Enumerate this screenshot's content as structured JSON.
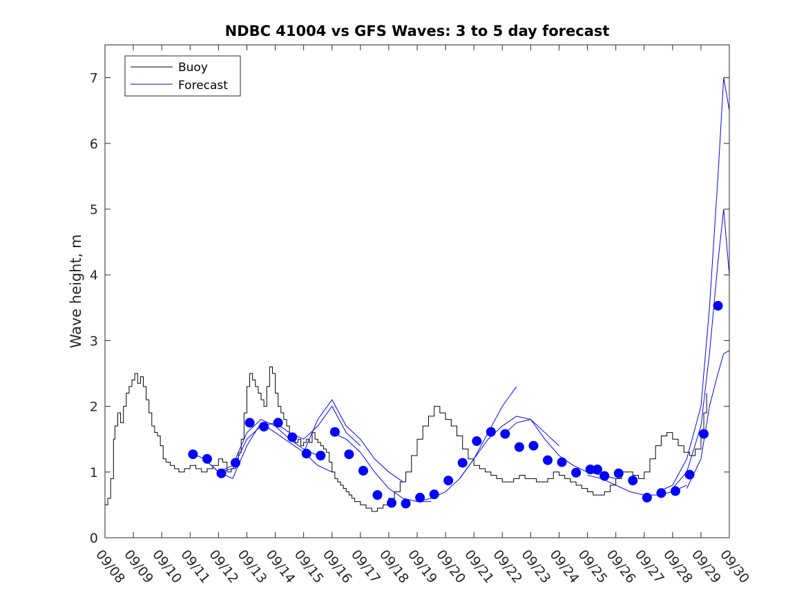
{
  "chart_data": {
    "type": "line",
    "title": "NDBC 41004 vs GFS Waves: 3 to 5 day forecast",
    "xlabel": "",
    "ylabel": "Wave height, m",
    "xlim": [
      0,
      22
    ],
    "ylim": [
      0,
      7.5
    ],
    "yticks": [
      0,
      1,
      2,
      3,
      4,
      5,
      6,
      7
    ],
    "xtick_labels": [
      "09/08",
      "09/09",
      "09/10",
      "09/11",
      "09/12",
      "09/13",
      "09/14",
      "09/15",
      "09/16",
      "09/17",
      "09/18",
      "09/19",
      "09/20",
      "09/21",
      "09/22",
      "09/23",
      "09/24",
      "09/25",
      "09/26",
      "09/27",
      "09/28",
      "09/29",
      "09/30"
    ],
    "legend": {
      "location": "top-left",
      "entries": [
        "Buoy",
        "Forecast"
      ]
    },
    "colors": {
      "buoy": "#000000",
      "forecast": "#0000ff",
      "marker": "#0000ff"
    },
    "series": [
      {
        "name": "Buoy",
        "x": [
          0.0,
          0.1,
          0.2,
          0.3,
          0.35,
          0.45,
          0.55,
          0.65,
          0.75,
          0.85,
          0.95,
          1.05,
          1.15,
          1.25,
          1.35,
          1.45,
          1.55,
          1.65,
          1.75,
          1.85,
          1.95,
          2.05,
          2.15,
          2.3,
          2.45,
          2.6,
          2.8,
          3.0,
          3.2,
          3.4,
          3.6,
          3.8,
          4.0,
          4.15,
          4.3,
          4.45,
          4.6,
          4.7,
          4.8,
          4.9,
          5.0,
          5.1,
          5.2,
          5.3,
          5.4,
          5.5,
          5.6,
          5.7,
          5.8,
          5.9,
          6.0,
          6.1,
          6.2,
          6.3,
          6.4,
          6.5,
          6.6,
          6.7,
          6.8,
          6.9,
          7.0,
          7.1,
          7.2,
          7.3,
          7.4,
          7.5,
          7.6,
          7.7,
          7.8,
          7.9,
          8.0,
          8.1,
          8.2,
          8.3,
          8.4,
          8.5,
          8.6,
          8.7,
          8.8,
          8.9,
          9.0,
          9.2,
          9.4,
          9.6,
          9.8,
          10.0,
          10.2,
          10.4,
          10.6,
          10.8,
          11.0,
          11.2,
          11.4,
          11.6,
          11.8,
          12.0,
          12.2,
          12.4,
          12.6,
          12.8,
          13.0,
          13.2,
          13.4,
          13.6,
          13.8,
          14.0,
          14.2,
          14.4,
          14.6,
          14.8,
          15.0,
          15.2,
          15.4,
          15.6,
          15.8,
          16.0,
          16.2,
          16.4,
          16.6,
          16.8,
          17.0,
          17.2,
          17.4,
          17.6,
          17.8,
          18.0,
          18.2,
          18.4,
          18.6,
          18.8,
          19.0,
          19.2,
          19.4,
          19.6,
          19.8,
          20.0,
          20.2,
          20.4,
          20.6,
          20.8,
          21.0,
          21.1,
          21.2
        ],
        "values": [
          0.5,
          0.6,
          0.9,
          1.5,
          1.7,
          1.9,
          1.75,
          2.0,
          2.2,
          2.3,
          2.4,
          2.5,
          2.35,
          2.45,
          2.3,
          2.1,
          1.9,
          1.7,
          1.6,
          1.55,
          1.4,
          1.2,
          1.15,
          1.1,
          1.05,
          1.0,
          1.05,
          1.1,
          1.05,
          1.0,
          1.05,
          1.1,
          1.2,
          1.15,
          1.0,
          1.05,
          1.2,
          1.3,
          1.5,
          1.9,
          2.3,
          2.5,
          2.4,
          2.3,
          2.2,
          2.1,
          2.0,
          2.3,
          2.6,
          2.5,
          2.2,
          2.0,
          1.9,
          1.8,
          1.7,
          1.55,
          1.5,
          1.45,
          1.5,
          1.4,
          1.45,
          1.5,
          1.45,
          1.6,
          1.5,
          1.45,
          1.4,
          1.35,
          1.3,
          1.15,
          1.0,
          0.9,
          0.85,
          0.8,
          0.75,
          0.7,
          0.65,
          0.6,
          0.55,
          0.55,
          0.5,
          0.45,
          0.4,
          0.45,
          0.5,
          0.6,
          0.7,
          0.85,
          1.0,
          1.25,
          1.5,
          1.7,
          1.85,
          2.0,
          1.9,
          1.8,
          1.7,
          1.55,
          1.35,
          1.2,
          1.1,
          1.05,
          1.0,
          0.95,
          0.9,
          0.85,
          0.85,
          0.9,
          0.95,
          0.9,
          0.9,
          0.85,
          0.85,
          0.9,
          1.0,
          0.95,
          0.9,
          0.85,
          0.8,
          0.75,
          0.7,
          0.65,
          0.65,
          0.7,
          0.8,
          0.9,
          1.0,
          1.0,
          0.95,
          0.9,
          1.0,
          1.2,
          1.4,
          1.55,
          1.6,
          1.5,
          1.4,
          1.3,
          1.25,
          1.35,
          1.6,
          1.9,
          2.2
        ]
      },
      {
        "name": "Forecast",
        "lines": [
          {
            "x": [
              3.0,
              3.5,
              4.0,
              4.5,
              5.0,
              5.5,
              6.0,
              6.5,
              7.0,
              7.5
            ],
            "values": [
              1.3,
              1.2,
              1.0,
              1.1,
              1.6,
              1.8,
              1.7,
              1.5,
              1.35,
              1.25
            ]
          },
          {
            "x": [
              3.5,
              4.0,
              4.5,
              5.0,
              5.5,
              6.0,
              6.5,
              7.0,
              7.5,
              8.0
            ],
            "values": [
              1.2,
              1.0,
              0.9,
              1.4,
              1.75,
              1.6,
              1.45,
              1.3,
              1.1,
              1.0
            ]
          },
          {
            "x": [
              4.0,
              4.5,
              5.0,
              5.5,
              6.0,
              6.5,
              7.0,
              7.5,
              8.0,
              8.5,
              9.0
            ],
            "values": [
              1.0,
              1.05,
              1.5,
              1.7,
              1.75,
              1.6,
              1.5,
              1.7,
              2.0,
              1.6,
              1.4
            ]
          },
          {
            "x": [
              7.0,
              7.5,
              8.0,
              8.5,
              9.0,
              9.5,
              10.0,
              10.5
            ],
            "values": [
              1.3,
              1.8,
              2.1,
              1.7,
              1.5,
              1.2,
              1.0,
              0.85
            ]
          },
          {
            "x": [
              8.0,
              8.5,
              9.0,
              9.5,
              10.0,
              10.5,
              11.0,
              11.5
            ],
            "values": [
              1.6,
              1.5,
              1.3,
              1.0,
              0.75,
              0.6,
              0.55,
              0.55
            ]
          },
          {
            "x": [
              11.0,
              11.5,
              12.0,
              12.5,
              13.0,
              13.5,
              14.0,
              14.5
            ],
            "values": [
              0.55,
              0.6,
              0.7,
              0.9,
              1.2,
              1.6,
              2.0,
              2.3
            ]
          },
          {
            "x": [
              12.5,
              13.0,
              13.5,
              14.0,
              14.5,
              15.0,
              15.5,
              16.0
            ],
            "values": [
              0.9,
              1.2,
              1.5,
              1.7,
              1.85,
              1.8,
              1.6,
              1.4
            ]
          },
          {
            "x": [
              14.0,
              14.5,
              15.0,
              15.5,
              16.0,
              16.5,
              17.0,
              17.5,
              18.0
            ],
            "values": [
              1.55,
              1.75,
              1.8,
              1.5,
              1.25,
              1.1,
              1.0,
              0.95,
              0.9
            ]
          },
          {
            "x": [
              17.0,
              17.5,
              18.0,
              18.5,
              19.0,
              19.5,
              20.0,
              20.5
            ],
            "values": [
              0.95,
              0.9,
              0.8,
              0.7,
              0.65,
              0.65,
              0.7,
              0.8
            ]
          },
          {
            "x": [
              19.5,
              20.0,
              20.5,
              21.0,
              21.3,
              21.6,
              21.8,
              22.0
            ],
            "values": [
              0.7,
              0.8,
              1.2,
              2.0,
              3.5,
              5.5,
              7.0,
              6.5
            ]
          },
          {
            "x": [
              20.0,
              20.5,
              21.0,
              21.3,
              21.6,
              21.8,
              22.0
            ],
            "values": [
              0.75,
              1.0,
              1.7,
              2.8,
              4.2,
              5.0,
              4.0
            ]
          },
          {
            "x": [
              20.5,
              21.0,
              21.3,
              21.6,
              21.8,
              22.0
            ],
            "values": [
              0.75,
              1.2,
              2.0,
              2.5,
              2.8,
              2.85
            ]
          }
        ]
      },
      {
        "name": "Markers",
        "x": [
          3.1,
          3.6,
          4.1,
          4.6,
          5.1,
          5.6,
          6.1,
          6.6,
          7.1,
          7.6,
          8.1,
          8.6,
          9.1,
          9.6,
          10.1,
          10.6,
          11.1,
          11.6,
          12.1,
          12.6,
          13.1,
          13.6,
          14.1,
          14.6,
          15.1,
          15.6,
          16.1,
          16.6,
          17.1,
          17.35,
          17.6,
          18.1,
          18.6,
          19.1,
          19.6,
          20.1,
          20.6,
          21.1,
          21.6
        ],
        "values": [
          1.27,
          1.2,
          0.98,
          1.14,
          1.75,
          1.69,
          1.75,
          1.53,
          1.28,
          1.25,
          1.61,
          1.27,
          1.02,
          0.65,
          0.53,
          0.52,
          0.61,
          0.66,
          0.87,
          1.14,
          1.47,
          1.61,
          1.58,
          1.38,
          1.4,
          1.18,
          1.15,
          0.99,
          1.04,
          1.04,
          0.94,
          0.98,
          0.87,
          0.61,
          0.68,
          0.71,
          0.96,
          1.58,
          3.53
        ]
      }
    ]
  }
}
